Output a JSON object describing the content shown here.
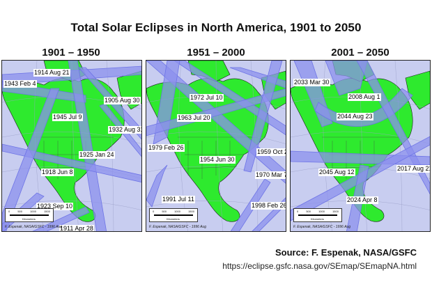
{
  "title": "Total Solar Eclipses in North America, 1901 to 2050",
  "panels": [
    {
      "period": "1901 – 1950",
      "eclipses": [
        "1914 Aug 21",
        "1943 Feb 4",
        "1905 Aug 30",
        "1945 Jul 9",
        "1932 Aug 31",
        "1925 Jan 24",
        "1918 Jun 8",
        "1923 Sep 10",
        "1911 Apr 28"
      ]
    },
    {
      "period": "1951 – 2000",
      "eclipses": [
        "1972 Jul 10",
        "1963 Jul 20",
        "1979 Feb 26",
        "1959 Oct 2",
        "1954 Jun 30",
        "1970 Mar 7",
        "1991 Jul 11",
        "1998 Feb 26"
      ]
    },
    {
      "period": "2001 – 2050",
      "eclipses": [
        "2033 Mar 30",
        "2008 Aug 1",
        "2044 Aug 23",
        "2045 Aug 12",
        "2017 Aug 21",
        "2024 Apr 8"
      ]
    }
  ],
  "scale_bar": {
    "ticks": [
      "0",
      "500",
      "1000",
      "1500"
    ],
    "unit": "Kilometers"
  },
  "map_credit": "F. Espenak, NASA/GSFC - 1996 Aug",
  "source": "Source: F. Espenak, NASA/GSFC",
  "url": "https://eclipse.gsfc.nasa.gov/SEmap/SEmapNA.html",
  "colors": {
    "land": "#2eea2e",
    "ocean": "#c8cdf0",
    "path": "#6e74e6",
    "path_fill": "#8c90ee"
  }
}
